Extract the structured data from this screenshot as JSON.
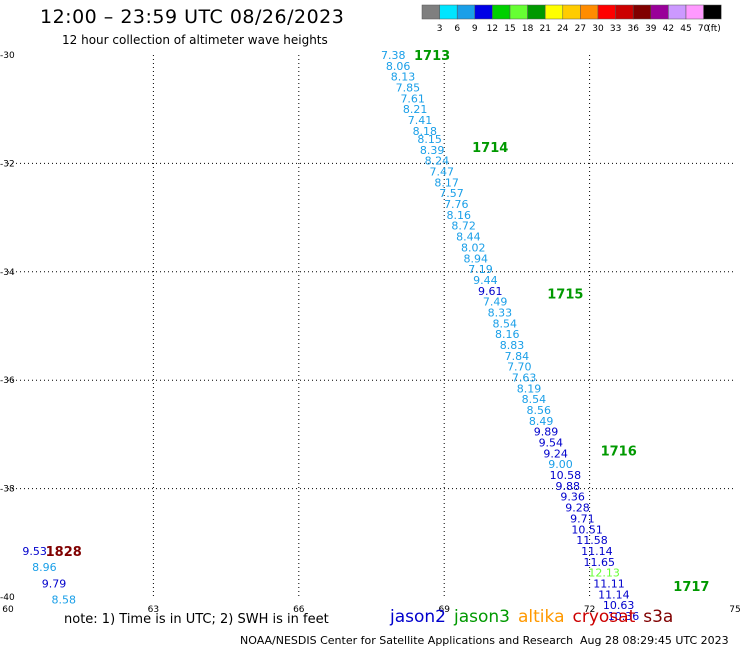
{
  "header": {
    "title": "12:00 – 23:59 UTC 08/26/2023",
    "subtitle": "12 hour collection of altimeter wave heights"
  },
  "legend": {
    "unit_label": "(ft)",
    "bins": [
      {
        "label": "3",
        "color": "#7f7f7f"
      },
      {
        "label": "6",
        "color": "#00e5ff"
      },
      {
        "label": "9",
        "color": "#1a9fe8"
      },
      {
        "label": "12",
        "color": "#0000e6"
      },
      {
        "label": "15",
        "color": "#00d000"
      },
      {
        "label": "18",
        "color": "#66ff33"
      },
      {
        "label": "21",
        "color": "#009900"
      },
      {
        "label": "24",
        "color": "#ffff00"
      },
      {
        "label": "27",
        "color": "#ffcc00"
      },
      {
        "label": "30",
        "color": "#ff8c00"
      },
      {
        "label": "33",
        "color": "#ff0000"
      },
      {
        "label": "36",
        "color": "#cc0000"
      },
      {
        "label": "39",
        "color": "#800000"
      },
      {
        "label": "42",
        "color": "#990099"
      },
      {
        "label": "45",
        "color": "#cc99ff"
      },
      {
        "label": "70",
        "color": "#ff99ff"
      },
      {
        "label": "",
        "color": "#000000"
      }
    ]
  },
  "footer": {
    "note": "note:  1) Time is in UTC;  2) SWH is in feet",
    "credit": "NOAA/NESDIS Center for Satellite Applications and Research",
    "timestamp": "Aug 28 08:29:45 UTC 2023",
    "satellites": [
      {
        "name": "jason2",
        "color": "#0000cc"
      },
      {
        "name": "jason3",
        "color": "#009900"
      },
      {
        "name": "altika",
        "color": "#ff9900"
      },
      {
        "name": "cryosat",
        "color": "#cc0000"
      },
      {
        "name": "s3a",
        "color": "#800000"
      }
    ]
  },
  "chart_data": {
    "type": "scatter",
    "title": "12:00 – 23:59 UTC 08/26/2023",
    "subtitle": "12 hour collection of altimeter wave heights",
    "xlim": [
      60,
      75
    ],
    "ylim": [
      -40,
      -30
    ],
    "x_ticks": [
      "60",
      "63",
      "66",
      "69",
      "72",
      "75"
    ],
    "y_ticks": [
      "-30",
      "-32",
      "-34",
      "-36",
      "-38",
      "-40"
    ],
    "grid": true,
    "passes": [
      {
        "label": "1713",
        "color": "#009900",
        "lon": 68.75,
        "lat": -30.0
      },
      {
        "label": "1714",
        "color": "#009900",
        "lon": 69.95,
        "lat": -31.7
      },
      {
        "label": "1715",
        "color": "#009900",
        "lon": 71.5,
        "lat": -34.4
      },
      {
        "label": "1716",
        "color": "#009900",
        "lon": 72.6,
        "lat": -37.3
      },
      {
        "label": "1717",
        "color": "#009900",
        "lon": 74.1,
        "lat": -39.8
      },
      {
        "label": "1828",
        "color": "#800000",
        "lon": 61.15,
        "lat": -39.15
      }
    ],
    "points": [
      {
        "lon": 67.95,
        "lat": -30.0,
        "swh": "7.38",
        "color": "#1a9fe8"
      },
      {
        "lon": 68.05,
        "lat": -30.2,
        "swh": "8.06",
        "color": "#1a9fe8"
      },
      {
        "lon": 68.15,
        "lat": -30.4,
        "swh": "8.13",
        "color": "#1a9fe8"
      },
      {
        "lon": 68.25,
        "lat": -30.6,
        "swh": "7.85",
        "color": "#1a9fe8"
      },
      {
        "lon": 68.35,
        "lat": -30.8,
        "swh": "7.61",
        "color": "#1a9fe8"
      },
      {
        "lon": 68.4,
        "lat": -31.0,
        "swh": "8.21",
        "color": "#1a9fe8"
      },
      {
        "lon": 68.5,
        "lat": -31.2,
        "swh": "7.41",
        "color": "#1a9fe8"
      },
      {
        "lon": 68.6,
        "lat": -31.4,
        "swh": "8.18",
        "color": "#1a9fe8"
      },
      {
        "lon": 68.7,
        "lat": -31.55,
        "swh": "8.15",
        "color": "#1a9fe8"
      },
      {
        "lon": 68.75,
        "lat": -31.75,
        "swh": "8.39",
        "color": "#1a9fe8"
      },
      {
        "lon": 68.85,
        "lat": -31.95,
        "swh": "8.24",
        "color": "#1a9fe8"
      },
      {
        "lon": 68.95,
        "lat": -32.15,
        "swh": "7.47",
        "color": "#1a9fe8"
      },
      {
        "lon": 69.05,
        "lat": -32.35,
        "swh": "8.17",
        "color": "#1a9fe8"
      },
      {
        "lon": 69.15,
        "lat": -32.55,
        "swh": "7.57",
        "color": "#1a9fe8"
      },
      {
        "lon": 69.25,
        "lat": -32.75,
        "swh": "7.76",
        "color": "#1a9fe8"
      },
      {
        "lon": 69.3,
        "lat": -32.95,
        "swh": "8.16",
        "color": "#1a9fe8"
      },
      {
        "lon": 69.4,
        "lat": -33.15,
        "swh": "8.72",
        "color": "#1a9fe8"
      },
      {
        "lon": 69.5,
        "lat": -33.35,
        "swh": "8.44",
        "color": "#1a9fe8"
      },
      {
        "lon": 69.6,
        "lat": -33.55,
        "swh": "8.02",
        "color": "#1a9fe8"
      },
      {
        "lon": 69.65,
        "lat": -33.75,
        "swh": "8.94",
        "color": "#1a9fe8"
      },
      {
        "lon": 69.75,
        "lat": -33.95,
        "swh": "7.19",
        "color": "#1a9fe8"
      },
      {
        "lon": 69.85,
        "lat": -34.15,
        "swh": "9.44",
        "color": "#1a9fe8"
      },
      {
        "lon": 69.95,
        "lat": -34.35,
        "swh": "9.61",
        "color": "#0000cc"
      },
      {
        "lon": 70.05,
        "lat": -34.55,
        "swh": "7.49",
        "color": "#1a9fe8"
      },
      {
        "lon": 70.15,
        "lat": -34.75,
        "swh": "8.33",
        "color": "#1a9fe8"
      },
      {
        "lon": 70.25,
        "lat": -34.95,
        "swh": "8.54",
        "color": "#1a9fe8"
      },
      {
        "lon": 70.3,
        "lat": -35.15,
        "swh": "8.16",
        "color": "#1a9fe8"
      },
      {
        "lon": 70.4,
        "lat": -35.35,
        "swh": "8.83",
        "color": "#1a9fe8"
      },
      {
        "lon": 70.5,
        "lat": -35.55,
        "swh": "7.84",
        "color": "#1a9fe8"
      },
      {
        "lon": 70.55,
        "lat": -35.75,
        "swh": "7.70",
        "color": "#1a9fe8"
      },
      {
        "lon": 70.65,
        "lat": -35.95,
        "swh": "7.63",
        "color": "#1a9fe8"
      },
      {
        "lon": 70.75,
        "lat": -36.15,
        "swh": "8.19",
        "color": "#1a9fe8"
      },
      {
        "lon": 70.85,
        "lat": -36.35,
        "swh": "8.54",
        "color": "#1a9fe8"
      },
      {
        "lon": 70.95,
        "lat": -36.55,
        "swh": "8.56",
        "color": "#1a9fe8"
      },
      {
        "lon": 71.0,
        "lat": -36.75,
        "swh": "8.49",
        "color": "#1a9fe8"
      },
      {
        "lon": 71.1,
        "lat": -36.95,
        "swh": "9.89",
        "color": "#0000cc"
      },
      {
        "lon": 71.2,
        "lat": -37.15,
        "swh": "9.54",
        "color": "#0000cc"
      },
      {
        "lon": 71.3,
        "lat": -37.35,
        "swh": "9.24",
        "color": "#0000cc"
      },
      {
        "lon": 71.4,
        "lat": -37.55,
        "swh": "9.00",
        "color": "#1a9fe8"
      },
      {
        "lon": 71.5,
        "lat": -37.75,
        "swh": "10.58",
        "color": "#0000cc"
      },
      {
        "lon": 71.55,
        "lat": -37.95,
        "swh": "9.88",
        "color": "#0000cc"
      },
      {
        "lon": 71.65,
        "lat": -38.15,
        "swh": "9.36",
        "color": "#0000cc"
      },
      {
        "lon": 71.75,
        "lat": -38.35,
        "swh": "9.28",
        "color": "#0000cc"
      },
      {
        "lon": 71.85,
        "lat": -38.55,
        "swh": "9.71",
        "color": "#0000cc"
      },
      {
        "lon": 71.95,
        "lat": -38.75,
        "swh": "10.51",
        "color": "#0000cc"
      },
      {
        "lon": 72.05,
        "lat": -38.95,
        "swh": "11.58",
        "color": "#0000cc"
      },
      {
        "lon": 72.15,
        "lat": -39.15,
        "swh": "11.14",
        "color": "#0000cc"
      },
      {
        "lon": 72.2,
        "lat": -39.35,
        "swh": "11.65",
        "color": "#0000cc"
      },
      {
        "lon": 72.3,
        "lat": -39.55,
        "swh": "12.13",
        "color": "#66ff33"
      },
      {
        "lon": 72.4,
        "lat": -39.75,
        "swh": "11.11",
        "color": "#0000cc"
      },
      {
        "lon": 72.5,
        "lat": -39.95,
        "swh": "11.14",
        "color": "#0000cc"
      },
      {
        "lon": 72.6,
        "lat": -40.15,
        "swh": "10.63",
        "color": "#0000cc"
      },
      {
        "lon": 72.7,
        "lat": -40.35,
        "swh": "10.36",
        "color": "#0000cc"
      },
      {
        "lon": 60.55,
        "lat": -39.15,
        "swh": "9.53",
        "color": "#0000cc"
      },
      {
        "lon": 60.75,
        "lat": -39.45,
        "swh": "8.96",
        "color": "#1a9fe8"
      },
      {
        "lon": 60.95,
        "lat": -39.75,
        "swh": "9.79",
        "color": "#0000cc"
      },
      {
        "lon": 61.15,
        "lat": -40.05,
        "swh": "8.58",
        "color": "#1a9fe8"
      }
    ]
  }
}
